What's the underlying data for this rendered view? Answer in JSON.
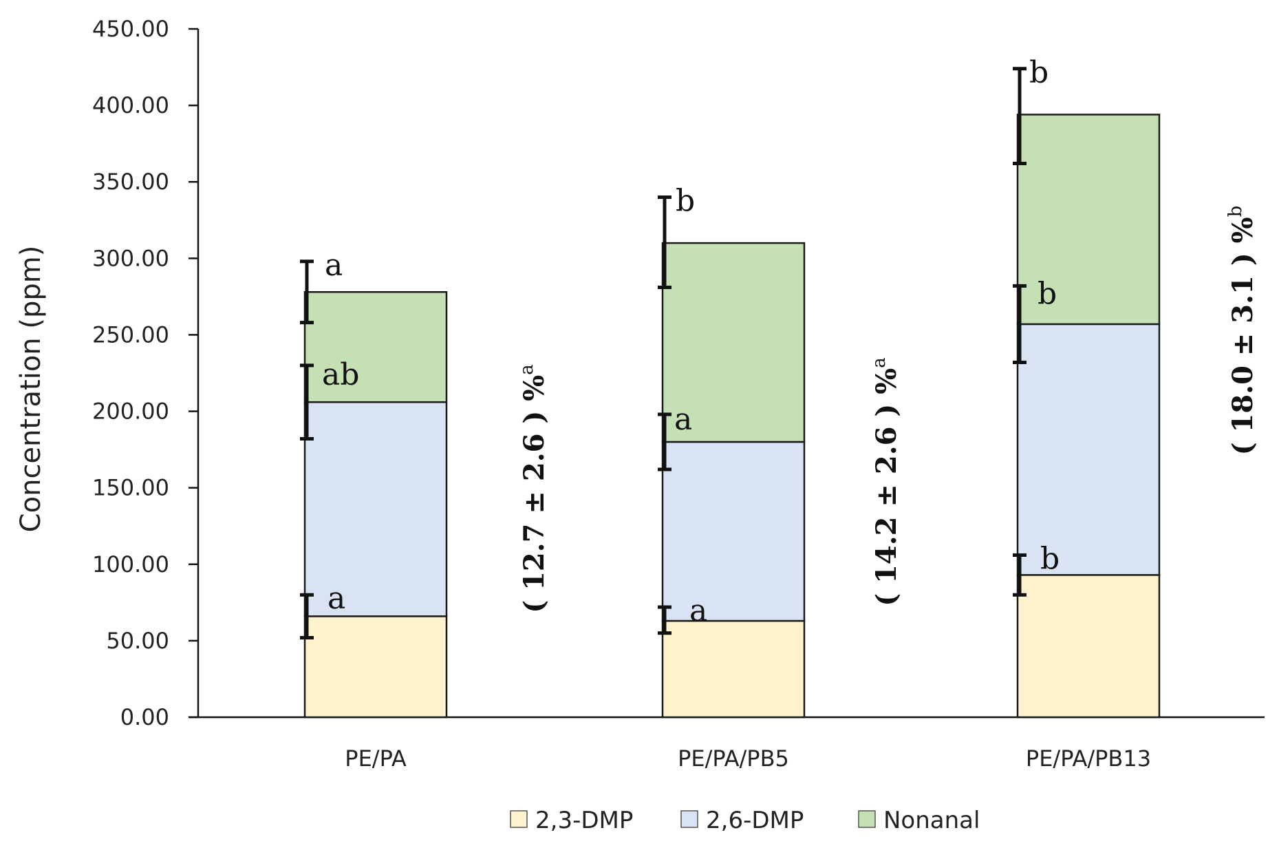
{
  "chart_data": {
    "type": "bar",
    "stacked": true,
    "title": "",
    "xlabel": "",
    "ylabel": "Concentration (ppm)",
    "ylim": [
      0,
      450
    ],
    "yticks": [
      "0.00",
      "50.00",
      "100.00",
      "150.00",
      "200.00",
      "250.00",
      "300.00",
      "350.00",
      "400.00",
      "450.00"
    ],
    "ytick_values": [
      0,
      50,
      100,
      150,
      200,
      250,
      300,
      350,
      400,
      450
    ],
    "categories": [
      "PE/PA",
      "PE/PA/PB5",
      "PE/PA/PB13"
    ],
    "series": [
      {
        "name": "2,3-DMP",
        "color": "#fff2cc",
        "values": [
          66,
          63,
          93
        ],
        "error_top": [
          80,
          72,
          106
        ],
        "error_bottom": [
          52,
          55,
          80
        ],
        "significance": [
          "a",
          "a",
          "b"
        ]
      },
      {
        "name": "2,6-DMP",
        "color": "#dae3f3",
        "values": [
          140,
          117,
          164
        ],
        "error_top": [
          230,
          198,
          282
        ],
        "error_bottom": [
          182,
          162,
          232
        ],
        "significance": [
          "ab",
          "a",
          "b"
        ]
      },
      {
        "name": "Nonanal",
        "color": "#c5e0b4",
        "values": [
          72,
          130,
          137
        ],
        "error_top": [
          298,
          340,
          424
        ],
        "error_bottom": [
          258,
          281,
          362
        ],
        "significance": [
          "a",
          "b",
          "b"
        ]
      }
    ],
    "percent_annotations": [
      {
        "text": "( 12.7 ± 2.6 ) %",
        "superscript": "a"
      },
      {
        "text": "( 14.2 ± 2.6 ) %",
        "superscript": "a"
      },
      {
        "text": "( 18.0 ± 3.1 ) %",
        "superscript": "b"
      }
    ],
    "legend": [
      "2,3-DMP",
      "2,6-DMP",
      "Nonanal"
    ],
    "legend_position": "bottom-center",
    "grid": false
  }
}
